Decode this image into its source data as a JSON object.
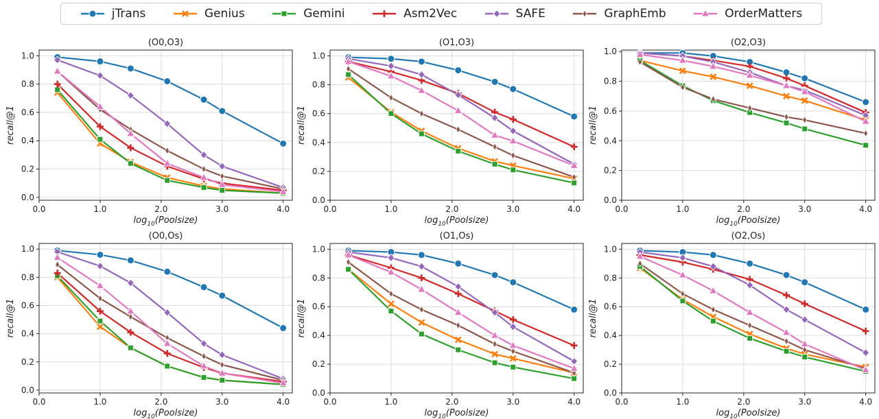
{
  "legend": [
    {
      "name": "jTrans",
      "color": "#1f77b4",
      "marker": "circle"
    },
    {
      "name": "Genius",
      "color": "#ff7f0e",
      "marker": "x"
    },
    {
      "name": "Gemini",
      "color": "#2ca02c",
      "marker": "square"
    },
    {
      "name": "Asm2Vec",
      "color": "#d62728",
      "marker": "plus"
    },
    {
      "name": "SAFE",
      "color": "#9467bd",
      "marker": "diamond"
    },
    {
      "name": "GraphEmb",
      "color": "#8c564b",
      "marker": "thin-diamond"
    },
    {
      "name": "OrderMatters",
      "color": "#e377c2",
      "marker": "triangle"
    }
  ],
  "chart_data": [
    {
      "type": "line",
      "title": "(O0,O3)",
      "xlabel_base": "log",
      "xlabel_sub": "10",
      "xlabel_rest": "(Poolsize)",
      "ylabel": "recall@1",
      "x": [
        0.3,
        1.0,
        1.5,
        2.1,
        2.7,
        3.0,
        4.0
      ],
      "xticks": [
        0.0,
        1.0,
        2.0,
        3.0,
        4.0
      ],
      "xtick_labels": [
        "0.0",
        "1.0",
        "2.0",
        "3.0",
        "4.0"
      ],
      "yticks": [
        0.0,
        0.2,
        0.4,
        0.6,
        0.8,
        1.0
      ],
      "ytick_labels": [
        "0.0",
        "0.2",
        "0.4",
        "0.6",
        "0.8",
        "1.0"
      ],
      "xlim": [
        0.0,
        4.15
      ],
      "ylim": [
        -0.02,
        1.04
      ],
      "grid": true,
      "series": [
        {
          "name": "jTrans",
          "values": [
            0.99,
            0.96,
            0.91,
            0.82,
            0.69,
            0.61,
            0.38
          ]
        },
        {
          "name": "Genius",
          "values": [
            0.74,
            0.38,
            0.25,
            0.14,
            0.08,
            0.06,
            0.03
          ]
        },
        {
          "name": "Gemini",
          "values": [
            0.76,
            0.41,
            0.24,
            0.12,
            0.07,
            0.05,
            0.03
          ]
        },
        {
          "name": "Asm2Vec",
          "values": [
            0.8,
            0.5,
            0.35,
            0.22,
            0.13,
            0.1,
            0.05
          ]
        },
        {
          "name": "SAFE",
          "values": [
            0.97,
            0.86,
            0.72,
            0.52,
            0.3,
            0.22,
            0.07
          ]
        },
        {
          "name": "GraphEmb",
          "values": [
            0.89,
            0.62,
            0.48,
            0.33,
            0.2,
            0.15,
            0.06
          ]
        },
        {
          "name": "OrderMatters",
          "values": [
            0.89,
            0.64,
            0.45,
            0.24,
            0.14,
            0.09,
            0.04
          ]
        }
      ]
    },
    {
      "type": "line",
      "title": "(O1,O3)",
      "xlabel_base": "log",
      "xlabel_sub": "10",
      "xlabel_rest": "(Poolsize)",
      "ylabel": "recall@1",
      "x": [
        0.3,
        1.0,
        1.5,
        2.1,
        2.7,
        3.0,
        4.0
      ],
      "xticks": [
        0.0,
        1.0,
        2.0,
        3.0,
        4.0
      ],
      "xtick_labels": [
        "0.0",
        "1.0",
        "2.0",
        "3.0",
        "4.0"
      ],
      "yticks": [
        0.0,
        0.2,
        0.4,
        0.6,
        0.8,
        1.0
      ],
      "ytick_labels": [
        "0.0",
        "0.2",
        "0.4",
        "0.6",
        "0.8",
        "1.0"
      ],
      "xlim": [
        0.0,
        4.15
      ],
      "ylim": [
        0.0,
        1.04
      ],
      "grid": true,
      "series": [
        {
          "name": "jTrans",
          "values": [
            0.99,
            0.98,
            0.96,
            0.9,
            0.82,
            0.77,
            0.58
          ]
        },
        {
          "name": "Genius",
          "values": [
            0.85,
            0.61,
            0.48,
            0.36,
            0.27,
            0.24,
            0.15
          ]
        },
        {
          "name": "Gemini",
          "values": [
            0.87,
            0.6,
            0.46,
            0.34,
            0.25,
            0.21,
            0.12
          ]
        },
        {
          "name": "Asm2Vec",
          "values": [
            0.96,
            0.89,
            0.83,
            0.74,
            0.61,
            0.56,
            0.37
          ]
        },
        {
          "name": "SAFE",
          "values": [
            0.98,
            0.93,
            0.87,
            0.73,
            0.57,
            0.48,
            0.25
          ]
        },
        {
          "name": "GraphEmb",
          "values": [
            0.91,
            0.71,
            0.6,
            0.49,
            0.37,
            0.31,
            0.16
          ]
        },
        {
          "name": "OrderMatters",
          "values": [
            0.96,
            0.86,
            0.76,
            0.62,
            0.45,
            0.41,
            0.24
          ]
        }
      ]
    },
    {
      "type": "line",
      "title": "(O2,O3)",
      "xlabel_base": "log",
      "xlabel_sub": "10",
      "xlabel_rest": "(Poolsize)",
      "ylabel": "recall@1",
      "x": [
        0.3,
        1.0,
        1.5,
        2.1,
        2.7,
        3.0,
        4.0
      ],
      "xticks": [
        0.0,
        1.0,
        2.0,
        3.0,
        4.0
      ],
      "xtick_labels": [
        "0.0",
        "1.0",
        "2.0",
        "3.0",
        "4.0"
      ],
      "yticks": [
        0.0,
        0.2,
        0.4,
        0.6,
        0.8,
        1.0
      ],
      "ytick_labels": [
        "0.0",
        "0.2",
        "0.4",
        "0.6",
        "0.8",
        "1.0"
      ],
      "xlim": [
        0.0,
        4.15
      ],
      "ylim": [
        0.0,
        1.01
      ],
      "grid": true,
      "series": [
        {
          "name": "jTrans",
          "values": [
            0.99,
            0.99,
            0.97,
            0.93,
            0.86,
            0.82,
            0.66
          ]
        },
        {
          "name": "Genius",
          "values": [
            0.94,
            0.87,
            0.83,
            0.77,
            0.7,
            0.67,
            0.54
          ]
        },
        {
          "name": "Gemini",
          "values": [
            0.94,
            0.77,
            0.67,
            0.59,
            0.52,
            0.48,
            0.37
          ]
        },
        {
          "name": "Asm2Vec",
          "values": [
            0.99,
            0.97,
            0.94,
            0.9,
            0.82,
            0.77,
            0.59
          ]
        },
        {
          "name": "SAFE",
          "values": [
            0.99,
            0.97,
            0.93,
            0.86,
            0.77,
            0.74,
            0.57
          ]
        },
        {
          "name": "GraphEmb",
          "values": [
            0.93,
            0.76,
            0.68,
            0.62,
            0.56,
            0.54,
            0.45
          ]
        },
        {
          "name": "OrderMatters",
          "values": [
            0.98,
            0.94,
            0.9,
            0.84,
            0.77,
            0.73,
            0.53
          ]
        }
      ]
    },
    {
      "type": "line",
      "title": "(O0,Os)",
      "xlabel_base": "log",
      "xlabel_sub": "10",
      "xlabel_rest": "(Poolsize)",
      "ylabel": "recall@1",
      "x": [
        0.3,
        1.0,
        1.5,
        2.1,
        2.7,
        3.0,
        4.0
      ],
      "xticks": [
        0.0,
        1.0,
        2.0,
        3.0,
        4.0
      ],
      "xtick_labels": [
        "0.0",
        "1.0",
        "2.0",
        "3.0",
        "4.0"
      ],
      "yticks": [
        0.0,
        0.2,
        0.4,
        0.6,
        0.8,
        1.0
      ],
      "ytick_labels": [
        "0.0",
        "0.2",
        "0.4",
        "0.6",
        "0.8",
        "1.0"
      ],
      "xlim": [
        0.0,
        4.15
      ],
      "ylim": [
        -0.02,
        1.04
      ],
      "grid": true,
      "series": [
        {
          "name": "jTrans",
          "values": [
            0.99,
            0.96,
            0.92,
            0.84,
            0.73,
            0.67,
            0.44
          ]
        },
        {
          "name": "Genius",
          "values": [
            0.8,
            0.45,
            0.3,
            0.17,
            0.09,
            0.07,
            0.04
          ]
        },
        {
          "name": "Gemini",
          "values": [
            0.81,
            0.49,
            0.3,
            0.17,
            0.09,
            0.07,
            0.04
          ]
        },
        {
          "name": "Asm2Vec",
          "values": [
            0.83,
            0.56,
            0.41,
            0.26,
            0.16,
            0.12,
            0.06
          ]
        },
        {
          "name": "SAFE",
          "values": [
            0.98,
            0.88,
            0.76,
            0.55,
            0.33,
            0.25,
            0.08
          ]
        },
        {
          "name": "GraphEmb",
          "values": [
            0.89,
            0.65,
            0.52,
            0.37,
            0.24,
            0.18,
            0.07
          ]
        },
        {
          "name": "OrderMatters",
          "values": [
            0.94,
            0.74,
            0.56,
            0.33,
            0.17,
            0.12,
            0.05
          ]
        }
      ]
    },
    {
      "type": "line",
      "title": "(O1,Os)",
      "xlabel_base": "log",
      "xlabel_sub": "10",
      "xlabel_rest": "(Poolsize)",
      "ylabel": "recall@1",
      "x": [
        0.3,
        1.0,
        1.5,
        2.1,
        2.7,
        3.0,
        4.0
      ],
      "xticks": [
        0.0,
        1.0,
        2.0,
        3.0,
        4.0
      ],
      "xtick_labels": [
        "0.0",
        "1.0",
        "2.0",
        "3.0",
        "4.0"
      ],
      "yticks": [
        0.0,
        0.2,
        0.4,
        0.6,
        0.8,
        1.0
      ],
      "ytick_labels": [
        "0.0",
        "0.2",
        "0.4",
        "0.6",
        "0.8",
        "1.0"
      ],
      "xlim": [
        0.0,
        4.15
      ],
      "ylim": [
        0.0,
        1.04
      ],
      "grid": true,
      "series": [
        {
          "name": "jTrans",
          "values": [
            0.99,
            0.98,
            0.96,
            0.9,
            0.82,
            0.77,
            0.58
          ]
        },
        {
          "name": "Genius",
          "values": [
            0.86,
            0.62,
            0.49,
            0.37,
            0.27,
            0.24,
            0.14
          ]
        },
        {
          "name": "Gemini",
          "values": [
            0.86,
            0.57,
            0.41,
            0.3,
            0.21,
            0.18,
            0.1
          ]
        },
        {
          "name": "Asm2Vec",
          "values": [
            0.96,
            0.87,
            0.8,
            0.69,
            0.57,
            0.51,
            0.33
          ]
        },
        {
          "name": "SAFE",
          "values": [
            0.98,
            0.94,
            0.88,
            0.74,
            0.56,
            0.46,
            0.22
          ]
        },
        {
          "name": "GraphEmb",
          "values": [
            0.91,
            0.69,
            0.58,
            0.47,
            0.34,
            0.29,
            0.14
          ]
        },
        {
          "name": "OrderMatters",
          "values": [
            0.96,
            0.84,
            0.72,
            0.56,
            0.4,
            0.33,
            0.17
          ]
        }
      ]
    },
    {
      "type": "line",
      "title": "(O2,Os)",
      "xlabel_base": "log",
      "xlabel_sub": "10",
      "xlabel_rest": "(Poolsize)",
      "ylabel": "recall@1",
      "x": [
        0.3,
        1.0,
        1.5,
        2.1,
        2.7,
        3.0,
        4.0
      ],
      "xticks": [
        0.0,
        1.0,
        2.0,
        3.0,
        4.0
      ],
      "xtick_labels": [
        "0.0",
        "1.0",
        "2.0",
        "3.0",
        "4.0"
      ],
      "yticks": [
        0.0,
        0.2,
        0.4,
        0.6,
        0.8,
        1.0
      ],
      "ytick_labels": [
        "0.0",
        "0.2",
        "0.4",
        "0.6",
        "0.8",
        "1.0"
      ],
      "xlim": [
        0.0,
        4.15
      ],
      "ylim": [
        0.0,
        1.04
      ],
      "grid": true,
      "series": [
        {
          "name": "jTrans",
          "values": [
            0.99,
            0.98,
            0.96,
            0.9,
            0.82,
            0.77,
            0.58
          ]
        },
        {
          "name": "Genius",
          "values": [
            0.87,
            0.65,
            0.53,
            0.41,
            0.31,
            0.27,
            0.18
          ]
        },
        {
          "name": "Gemini",
          "values": [
            0.88,
            0.64,
            0.5,
            0.38,
            0.29,
            0.25,
            0.15
          ]
        },
        {
          "name": "Asm2Vec",
          "values": [
            0.96,
            0.91,
            0.86,
            0.79,
            0.68,
            0.62,
            0.43
          ]
        },
        {
          "name": "SAFE",
          "values": [
            0.98,
            0.94,
            0.88,
            0.75,
            0.58,
            0.51,
            0.28
          ]
        },
        {
          "name": "GraphEmb",
          "values": [
            0.9,
            0.69,
            0.58,
            0.47,
            0.36,
            0.3,
            0.17
          ]
        },
        {
          "name": "OrderMatters",
          "values": [
            0.95,
            0.82,
            0.71,
            0.56,
            0.42,
            0.34,
            0.16
          ]
        }
      ]
    }
  ]
}
